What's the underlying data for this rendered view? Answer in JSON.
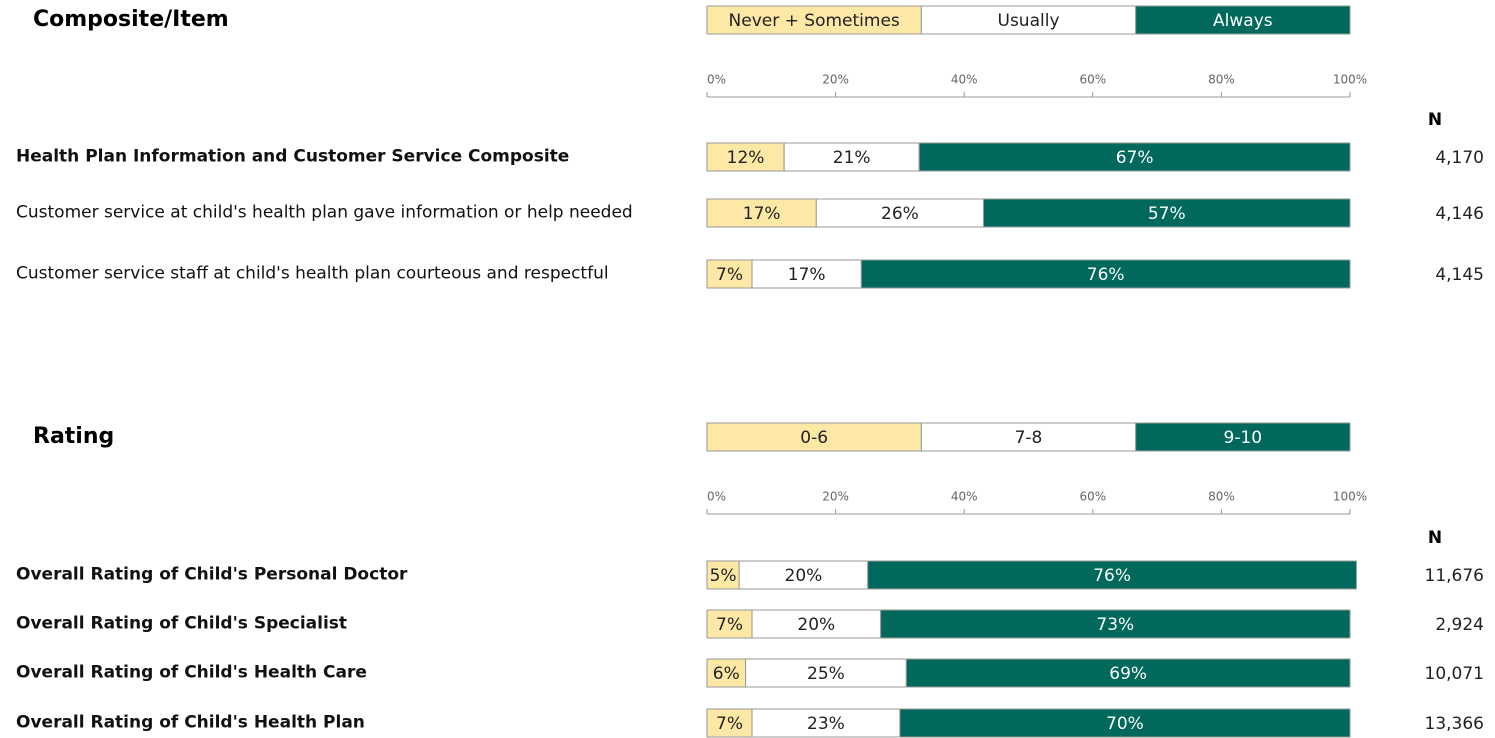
{
  "chart_data": [
    {
      "type": "stacked-bar-h",
      "title": "Composite/Item",
      "categories": [
        "Health Plan Information and Customer Service Composite",
        "Customer service at child's health plan gave information or help needed",
        "Customer service staff at child's health plan courteous and respectful"
      ],
      "series": [
        {
          "name": "Never + Sometimes",
          "color": "#fee8a6",
          "values": [
            12,
            17,
            7
          ],
          "value_labels": [
            "12%",
            "17%",
            "7%"
          ]
        },
        {
          "name": "Usually",
          "color": "#ffffff",
          "values": [
            21,
            26,
            17
          ],
          "value_labels": [
            "21%",
            "26%",
            "17%"
          ]
        },
        {
          "name": "Always",
          "color": "#00695c",
          "values": [
            67,
            57,
            76
          ],
          "value_labels": [
            "67%",
            "57%",
            "76%"
          ]
        }
      ],
      "xlim": [
        0,
        100
      ],
      "xticks": [
        {
          "value": 0,
          "label": "0%"
        },
        {
          "value": 20,
          "label": "20%"
        },
        {
          "value": 40,
          "label": "40%"
        },
        {
          "value": 60,
          "label": "60%"
        },
        {
          "value": 80,
          "label": "80%"
        },
        {
          "value": 100,
          "label": "100%"
        }
      ],
      "n_label": "N",
      "n": [
        4170,
        4146,
        4145
      ],
      "n_labels": [
        "4,170",
        "4,146",
        "4,145"
      ]
    },
    {
      "type": "stacked-bar-h",
      "title": "Rating",
      "categories": [
        "Overall Rating of Child's Personal Doctor",
        "Overall Rating of Child's Specialist",
        "Overall Rating of Child's Health Care",
        "Overall Rating of Child's Health Plan"
      ],
      "series": [
        {
          "name": "0-6",
          "color": "#fee8a6",
          "values": [
            5,
            7,
            6,
            7
          ],
          "value_labels": [
            "5%",
            "7%",
            "6%",
            "7%"
          ]
        },
        {
          "name": "7-8",
          "color": "#ffffff",
          "values": [
            20,
            20,
            25,
            23
          ],
          "value_labels": [
            "20%",
            "20%",
            "25%",
            "23%"
          ]
        },
        {
          "name": "9-10",
          "color": "#00695c",
          "values": [
            76,
            73,
            69,
            70
          ],
          "value_labels": [
            "76%",
            "73%",
            "69%",
            "70%"
          ]
        }
      ],
      "xlim": [
        0,
        100
      ],
      "xticks": [
        {
          "value": 0,
          "label": "0%"
        },
        {
          "value": 20,
          "label": "20%"
        },
        {
          "value": 40,
          "label": "40%"
        },
        {
          "value": 60,
          "label": "60%"
        },
        {
          "value": 80,
          "label": "80%"
        },
        {
          "value": 100,
          "label": "100%"
        }
      ],
      "n_label": "N",
      "n": [
        11676,
        2924,
        10071,
        13366
      ],
      "n_labels": [
        "11,676",
        "2,924",
        "10,071",
        "13,366"
      ]
    }
  ]
}
